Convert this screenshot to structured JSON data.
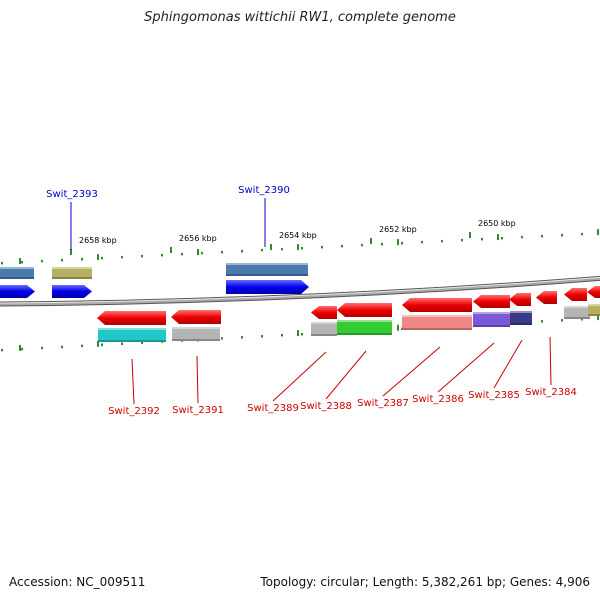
{
  "title": "Sphingomonas wittichii RW1, complete genome",
  "footer": {
    "accession": "Accession: NC_009511",
    "summary": "Topology: circular; Length: 5,382,261 bp; Genes: 4,906"
  },
  "scale_labels": [
    "2658 kbp",
    "2656 kbp",
    "2654 kbp",
    "2652 kbp",
    "2650 kbp"
  ],
  "gene_labels": {
    "top": [
      "Swit_2393",
      "Swit_2390"
    ],
    "bottom": [
      "Swit_2392",
      "Swit_2391",
      "Swit_2389",
      "Swit_2388",
      "Swit_2387",
      "Swit_2386",
      "Swit_2385",
      "Swit_2384"
    ]
  },
  "colors": {
    "forward_label": "#0000cc",
    "reverse_label": "#cc0000",
    "tick": "#2e8b2e",
    "backbone": "#888888",
    "gene_red": "#ee0000",
    "gene_blue": "#0000ee",
    "band_steelblue": "#4a7bb0",
    "band_olive": "#b5b060",
    "band_cyan": "#22c8c8",
    "band_gray": "#b4b4b4",
    "band_green": "#33cc33",
    "band_pink": "#f08888",
    "band_purple": "#7a5ad6",
    "band_navy": "#3a3a88"
  },
  "icons": {
    "forward_gene": "right-arrow",
    "reverse_gene": "left-arrow"
  }
}
